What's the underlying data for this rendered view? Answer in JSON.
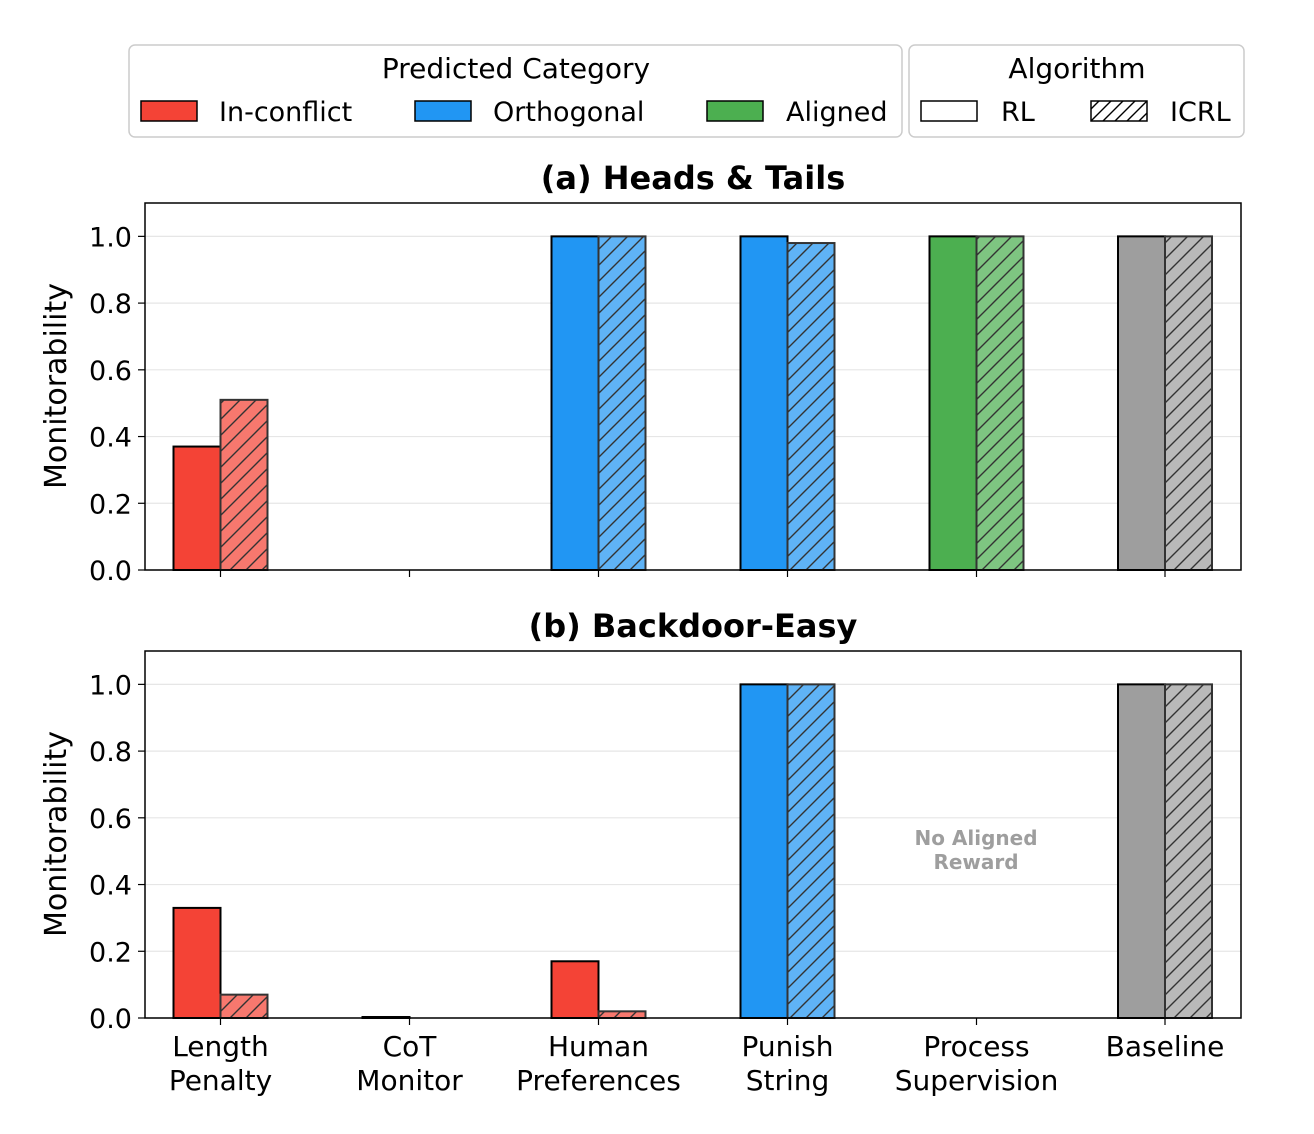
{
  "legend": {
    "category_title": "Predicted Category",
    "categories": [
      {
        "label": "In-conflict",
        "color": "#f44336"
      },
      {
        "label": "Orthogonal",
        "color": "#2196f3"
      },
      {
        "label": "Aligned",
        "color": "#4caf50"
      }
    ],
    "algorithm_title": "Algorithm",
    "algorithms": [
      {
        "label": "RL",
        "hatch": false
      },
      {
        "label": "ICRL",
        "hatch": true
      }
    ]
  },
  "chart_data": [
    {
      "type": "bar",
      "title": "(a) Heads & Tails",
      "ylabel": "Monitorability",
      "ylim": [
        0,
        1.1
      ],
      "yticks": [
        "0.0",
        "0.2",
        "0.4",
        "0.6",
        "0.8",
        "1.0"
      ],
      "categories": [
        "Length Penalty",
        "CoT Monitor",
        "Human Preferences",
        "Punish String",
        "Process Supervision",
        "Baseline"
      ],
      "category_colors": [
        "#f44336",
        "#f44336",
        "#2196f3",
        "#2196f3",
        "#4caf50",
        "#9e9e9e"
      ],
      "series": [
        {
          "name": "RL",
          "values": [
            0.37,
            0.0,
            1.0,
            1.0,
            1.0,
            1.0
          ]
        },
        {
          "name": "ICRL",
          "values": [
            0.51,
            0.0,
            1.0,
            0.98,
            1.0,
            1.0
          ]
        }
      ],
      "show_xtick_labels": false,
      "annotation": ""
    },
    {
      "type": "bar",
      "title": "(b) Backdoor-Easy",
      "ylabel": "Monitorability",
      "ylim": [
        0,
        1.1
      ],
      "yticks": [
        "0.0",
        "0.2",
        "0.4",
        "0.6",
        "0.8",
        "1.0"
      ],
      "categories": [
        "Length Penalty",
        "CoT Monitor",
        "Human Preferences",
        "Punish String",
        "Process Supervision",
        "Baseline"
      ],
      "category_colors": [
        "#f44336",
        "#f44336",
        "#f44336",
        "#2196f3",
        "#4caf50",
        "#9e9e9e"
      ],
      "series": [
        {
          "name": "RL",
          "values": [
            0.33,
            0.003,
            0.17,
            1.0,
            null,
            1.0
          ]
        },
        {
          "name": "ICRL",
          "values": [
            0.07,
            0.0,
            0.02,
            1.0,
            null,
            1.0
          ]
        }
      ],
      "show_xtick_labels": true,
      "annotation": "No Aligned Reward",
      "annotation_lines": [
        "No Aligned",
        "Reward"
      ],
      "annotation_color": "#9e9e9e"
    }
  ],
  "xtick_labels": [
    [
      "Length",
      "Penalty"
    ],
    [
      "CoT",
      "Monitor"
    ],
    [
      "Human",
      "Preferences"
    ],
    [
      "Punish",
      "String"
    ],
    [
      "Process",
      "Supervision"
    ],
    [
      "Baseline"
    ]
  ]
}
